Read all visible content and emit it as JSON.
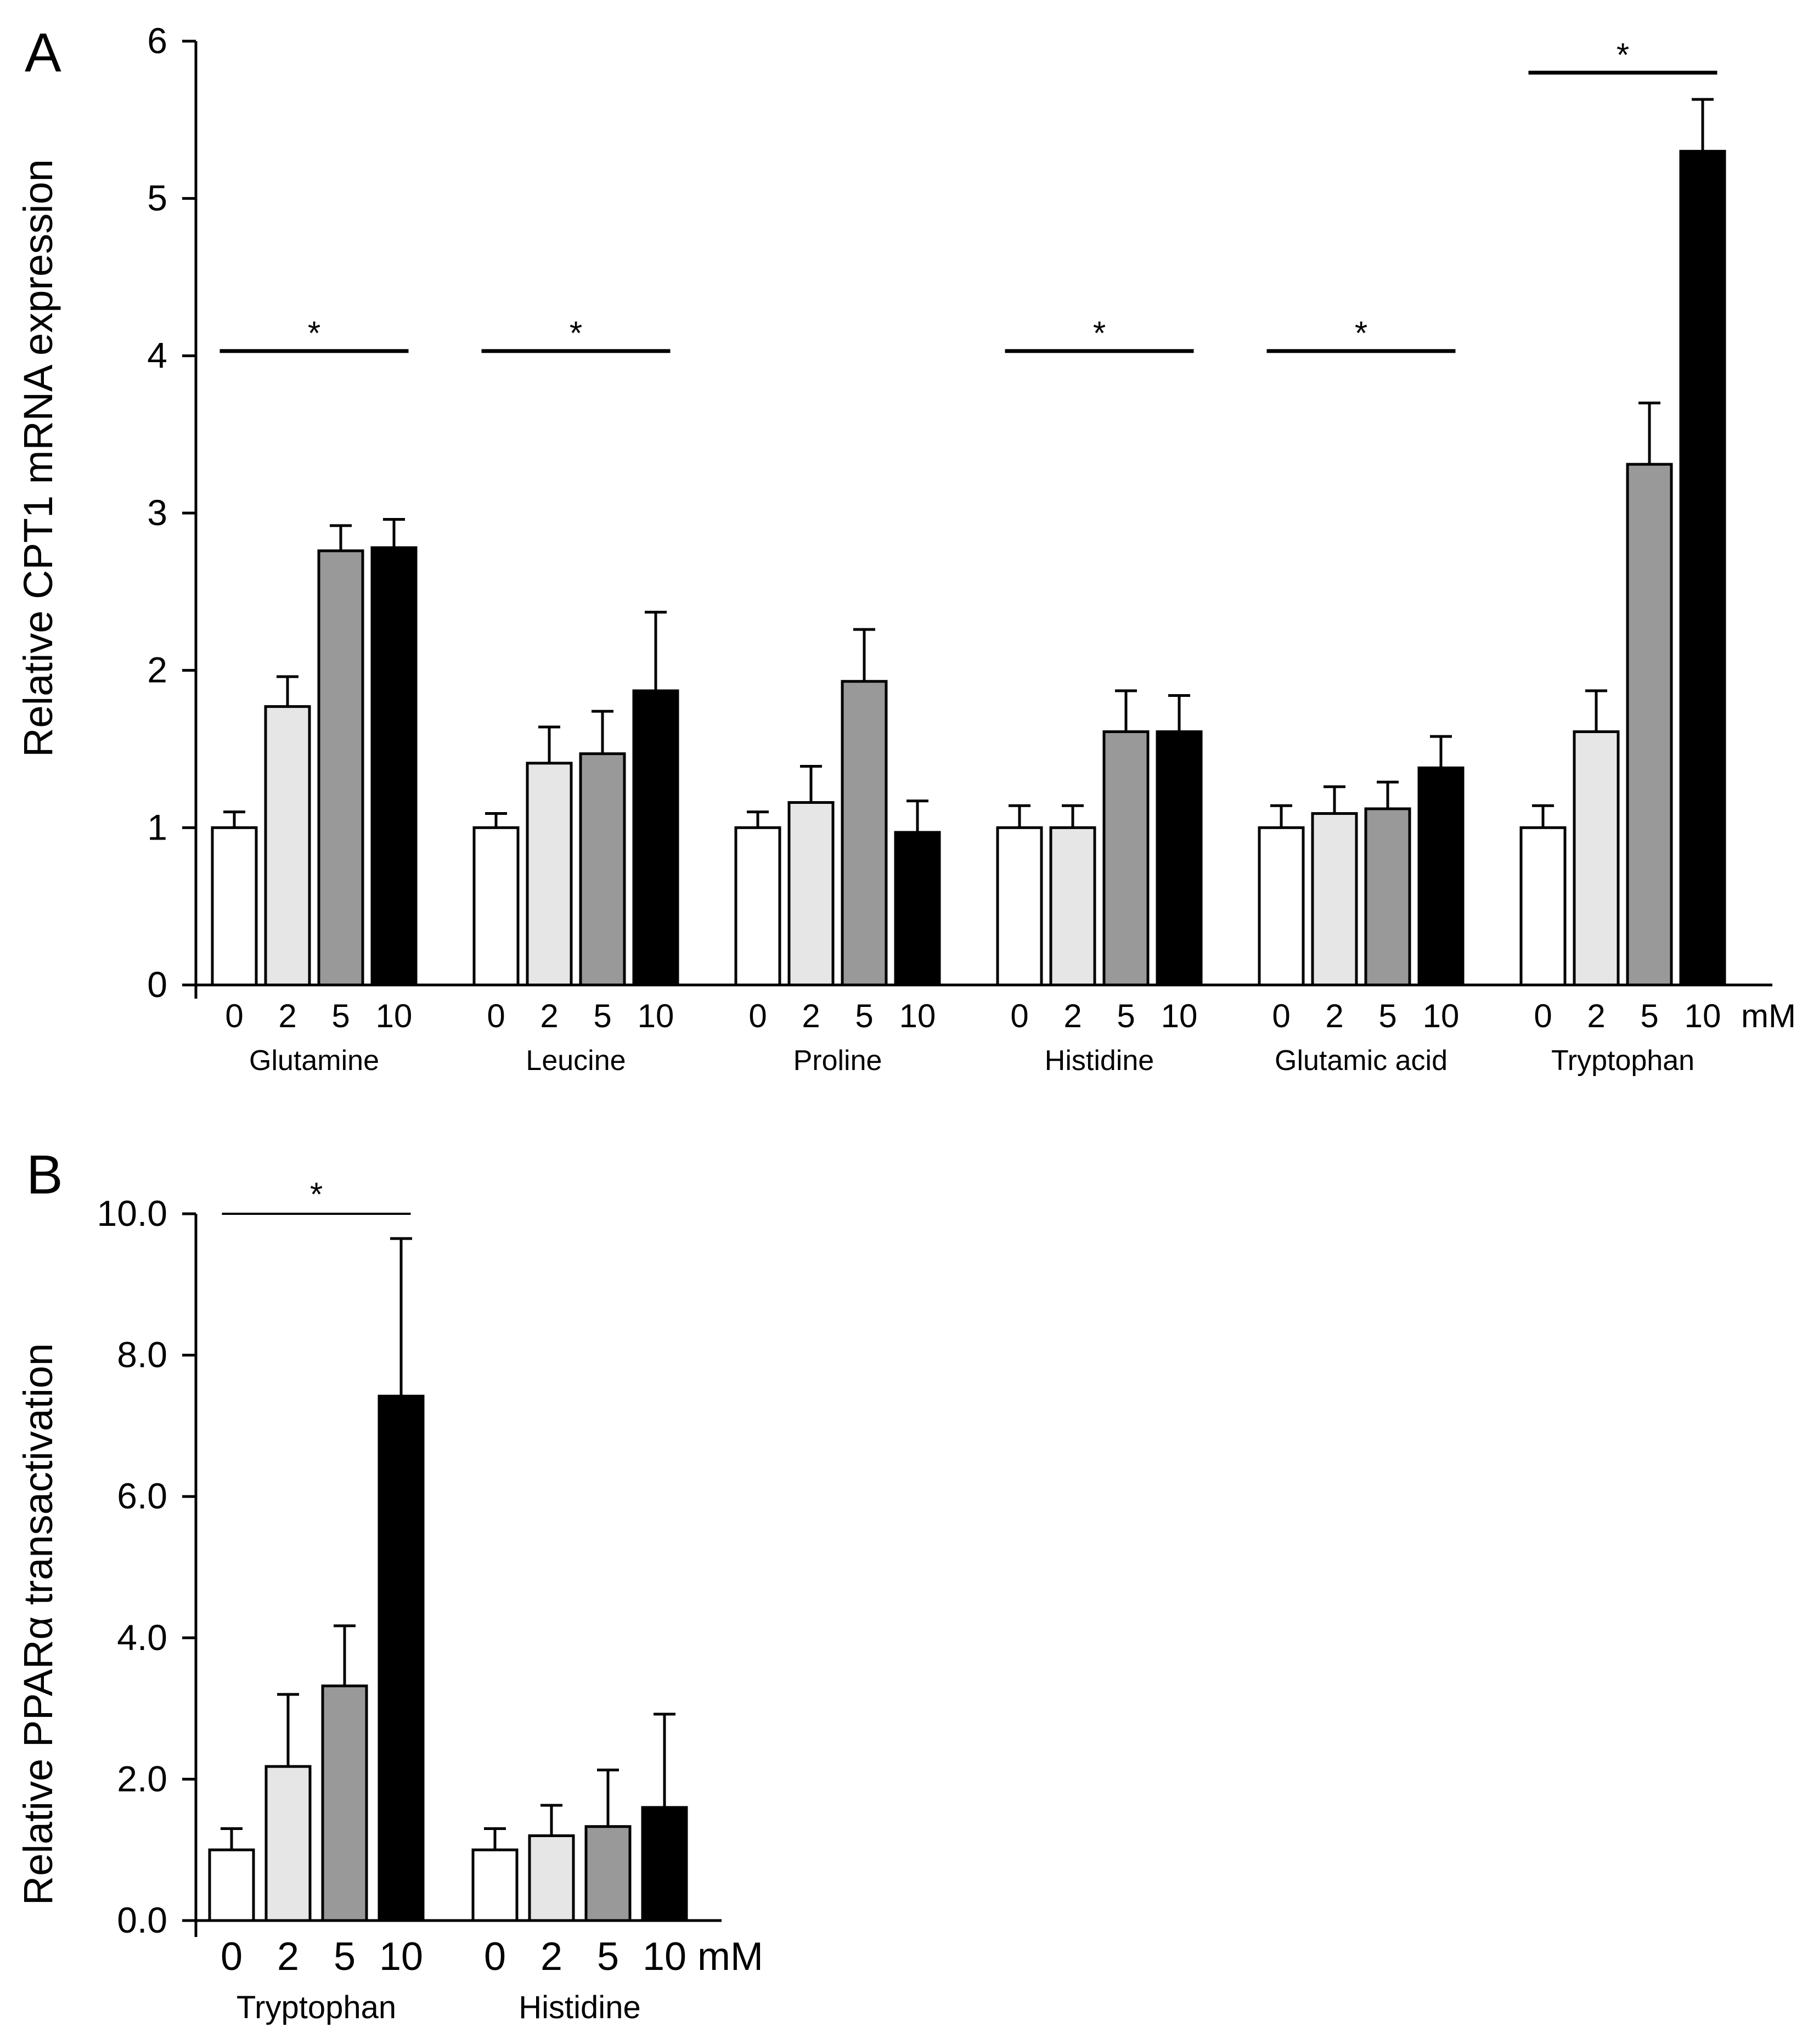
{
  "chart_data": [
    {
      "panel": "A",
      "type": "bar",
      "ylabel": "Relative CPT1 mRNA expression",
      "ylim": [
        0,
        6
      ],
      "yticks": [
        "0",
        "1",
        "2",
        "3",
        "4",
        "5",
        "6"
      ],
      "concentrations": [
        "0",
        "2",
        "5",
        "10"
      ],
      "unit": "mM",
      "fills": [
        "#ffffff",
        "#e6e6e6",
        "#999999",
        "#000000"
      ],
      "groups": [
        {
          "name": "Glutamine",
          "values": [
            1.0,
            1.77,
            2.76,
            2.78
          ],
          "errors": [
            0.1,
            0.19,
            0.16,
            0.18
          ],
          "significance": "*",
          "sig_level": 4.03
        },
        {
          "name": "Leucine",
          "values": [
            1.0,
            1.41,
            1.47,
            1.87
          ],
          "errors": [
            0.09,
            0.23,
            0.27,
            0.5
          ],
          "significance": "*",
          "sig_level": 4.03
        },
        {
          "name": "Proline",
          "values": [
            1.0,
            1.16,
            1.93,
            0.97
          ],
          "errors": [
            0.1,
            0.23,
            0.33,
            0.2
          ],
          "significance": "",
          "sig_level": null
        },
        {
          "name": "Histidine",
          "values": [
            1.0,
            1.0,
            1.61,
            1.61
          ],
          "errors": [
            0.14,
            0.14,
            0.26,
            0.23
          ],
          "significance": "*",
          "sig_level": 4.03
        },
        {
          "name": "Glutamic acid",
          "values": [
            1.0,
            1.09,
            1.12,
            1.38
          ],
          "errors": [
            0.14,
            0.17,
            0.17,
            0.2
          ],
          "significance": "*",
          "sig_level": 4.03
        },
        {
          "name": "Tryptophan",
          "values": [
            1.0,
            1.61,
            3.31,
            5.3
          ],
          "errors": [
            0.14,
            0.26,
            0.39,
            0.33
          ],
          "significance": "*",
          "sig_level": 5.8
        }
      ]
    },
    {
      "panel": "B",
      "type": "bar",
      "ylabel": "Relative PPARα transactivation",
      "ylim": [
        0,
        10
      ],
      "yticks": [
        "0.0",
        "2.0",
        "4.0",
        "6.0",
        "8.0",
        "10.0"
      ],
      "concentrations": [
        "0",
        "2",
        "5",
        "10"
      ],
      "unit": "mM",
      "fills": [
        "#ffffff",
        "#e6e6e6",
        "#999999",
        "#000000"
      ],
      "groups": [
        {
          "name": "Tryptophan",
          "values": [
            1.0,
            2.18,
            3.32,
            7.42
          ],
          "errors": [
            0.3,
            1.02,
            0.85,
            2.23
          ],
          "significance": "*",
          "sig_level": 10.0
        },
        {
          "name": "Histidine",
          "values": [
            1.0,
            1.2,
            1.33,
            1.6
          ],
          "errors": [
            0.3,
            0.43,
            0.8,
            1.32
          ],
          "significance": "",
          "sig_level": null
        }
      ]
    }
  ]
}
